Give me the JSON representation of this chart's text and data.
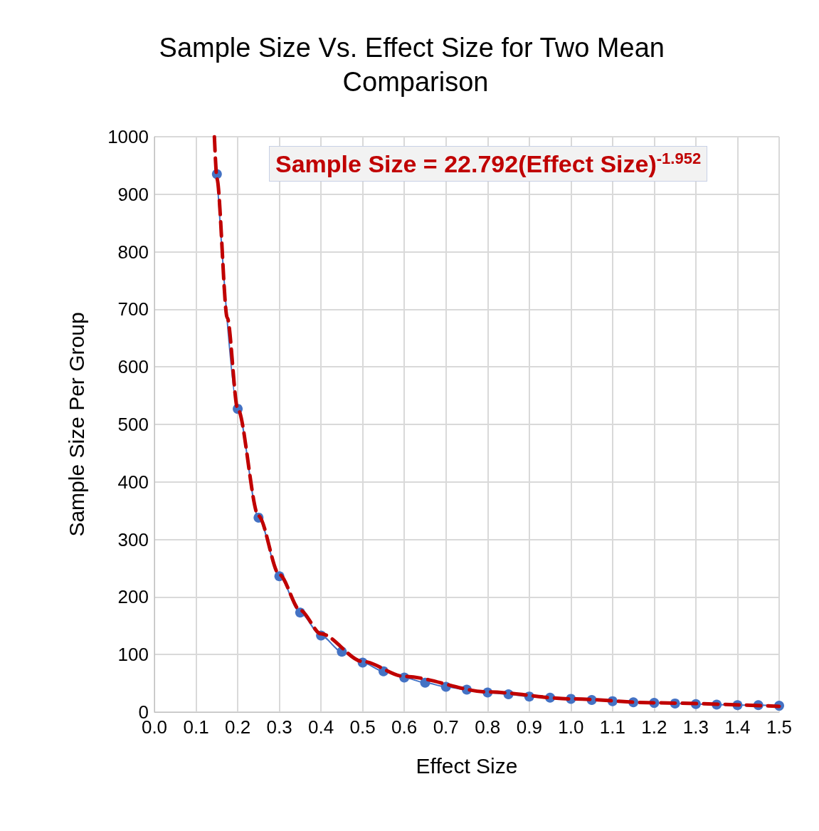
{
  "chart_data": {
    "type": "line",
    "title": "Sample Size Vs. Effect Size for Two Mean Comparison",
    "xlabel": "Effect Size",
    "ylabel": "Sample Size Per Group",
    "annotations": [
      "Sample Size = 22.792(Effect Size)$^{-1.952}$"
    ],
    "xlim": [
      0,
      1.5
    ],
    "xticks": [
      {
        "value": 0,
        "label": "0.0"
      },
      0.1,
      0.2,
      0.3,
      0.4,
      0.5,
      0.6,
      0.7,
      0.8,
      0.9,
      {
        "value": 1,
        "label": "1.0"
      },
      1.1,
      1.2,
      1.3,
      1.4,
      1.5
    ],
    "ylim": [
      0,
      1000
    ],
    "yticks": [
      0,
      100,
      200,
      300,
      400,
      500,
      600,
      700,
      800,
      900,
      1000
    ],
    "grid": true,
    "series": [
      {
        "color": "#4472c4",
        "marker": "circle",
        "line_style": "solid",
        "x": [
          0.15,
          0.2,
          0.25,
          0.3,
          0.35,
          0.4,
          0.45,
          0.5,
          0.55,
          0.6,
          0.65,
          0.7,
          0.75,
          0.8,
          0.85,
          0.9,
          0.95,
          1.0,
          1.05,
          1.1,
          1.15,
          1.2,
          1.25,
          1.3,
          1.35,
          1.4,
          1.45,
          1.5
        ],
        "values": [
          935,
          527,
          338,
          236,
          173,
          133,
          105,
          86,
          71,
          60,
          51,
          44,
          39,
          34,
          31,
          27,
          25,
          23,
          21,
          19,
          17,
          16,
          15,
          14,
          13,
          12,
          12,
          11
        ]
      },
      {
        "color": "#c00000",
        "marker": "none",
        "line_style": "dashed",
        "x": [
          0.144,
          0.15,
          0.175,
          0.2,
          0.25,
          0.3,
          0.35,
          0.4,
          0.5,
          0.6,
          0.8,
          1.0,
          1.2,
          1.5
        ],
        "values": [
          1000,
          927,
          685,
          527,
          341,
          239,
          177,
          136,
          88,
          62,
          35,
          23,
          16,
          10
        ]
      }
    ]
  }
}
